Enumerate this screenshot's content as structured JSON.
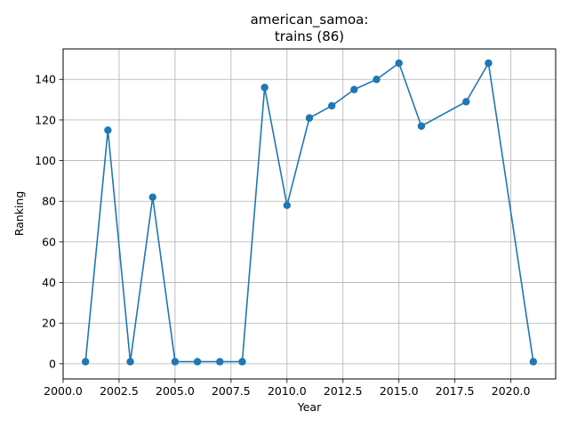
{
  "chart_data": {
    "type": "line",
    "title_lines": [
      "american_samoa:",
      "trains (86)"
    ],
    "xlabel": "Year",
    "ylabel": "Ranking",
    "xlim": [
      2000.0,
      2022.0
    ],
    "ylim": [
      -7.5,
      155
    ],
    "x_ticks": [
      2000.0,
      2002.5,
      2005.0,
      2007.5,
      2010.0,
      2012.5,
      2015.0,
      2017.5,
      2020.0
    ],
    "x_tick_labels": [
      "2000.0",
      "2002.5",
      "2005.0",
      "2007.5",
      "2010.0",
      "2012.5",
      "2015.0",
      "2017.5",
      "2020.0"
    ],
    "y_ticks": [
      0,
      20,
      40,
      60,
      80,
      100,
      120,
      140
    ],
    "y_tick_labels": [
      "0",
      "20",
      "40",
      "60",
      "80",
      "100",
      "120",
      "140"
    ],
    "grid": true,
    "series": [
      {
        "color": "#1f77b4",
        "marker": "circle",
        "x": [
          2001,
          2002,
          2003,
          2004,
          2005,
          2006,
          2007,
          2008,
          2009,
          2010,
          2011,
          2012,
          2013,
          2014,
          2015,
          2016,
          2018,
          2019,
          2021
        ],
        "y": [
          1,
          115,
          1,
          82,
          1,
          1,
          1,
          1,
          136,
          78,
          121,
          127,
          135,
          140,
          148,
          117,
          129,
          148,
          1
        ]
      }
    ]
  }
}
